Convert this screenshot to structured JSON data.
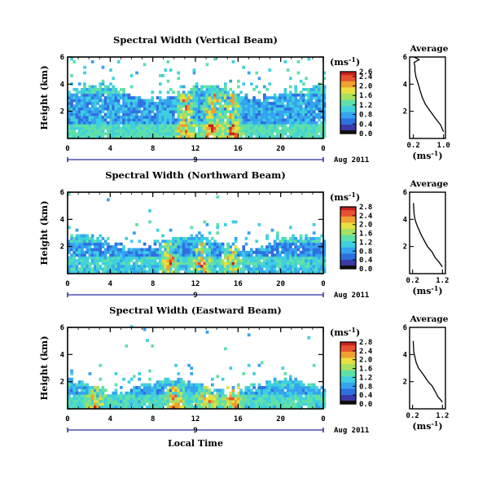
{
  "figure": {
    "xlabel": "Local Time",
    "colorbar_unit": "(ms",
    "colorbar_unit_sup": "-1",
    "avg_title": "Average",
    "avg_unit": "(ms",
    "avg_unit_sup": "-1",
    "date_suffix": "Aug 2011",
    "colors": {
      "colormap": [
        "#2b2b6b",
        "#3a3aa8",
        "#2f6fe0",
        "#35a3f0",
        "#3fd0e0",
        "#60e0a8",
        "#a8e060",
        "#e8e040",
        "#f0a030",
        "#e85030",
        "#c82020"
      ]
    }
  },
  "chart_data": [
    {
      "type": "heatmap",
      "title": "Spectral Width (Vertical Beam)",
      "ylabel": "Height (km)",
      "xlim": [
        0,
        24
      ],
      "ylim": [
        0,
        6
      ],
      "x_ticks": [
        "0",
        "4",
        "8",
        "12",
        "16",
        "20",
        "0"
      ],
      "y_ticks": [
        "2",
        "4",
        "6"
      ],
      "day_label": "9",
      "colorbar": {
        "range": [
          0.0,
          2.6
        ],
        "ticks": [
          "0.0",
          "0.4",
          "0.8",
          "1.2",
          "1.6",
          "2.0",
          "2.4",
          "2.6"
        ]
      },
      "profile": {
        "title": "Average",
        "x_ticks": [
          "0.2",
          "1.0"
        ],
        "xlim": [
          0.1,
          1.05
        ],
        "y_ticks": [
          "2",
          "4",
          "6"
        ],
        "ylim": [
          0,
          6
        ],
        "points": [
          [
            1.0,
            0.5
          ],
          [
            0.92,
            1.0
          ],
          [
            0.78,
            1.5
          ],
          [
            0.65,
            2.0
          ],
          [
            0.52,
            2.5
          ],
          [
            0.44,
            3.0
          ],
          [
            0.38,
            3.5
          ],
          [
            0.33,
            4.0
          ],
          [
            0.27,
            4.5
          ],
          [
            0.24,
            5.0
          ],
          [
            0.24,
            5.3
          ],
          [
            0.22,
            5.6
          ],
          [
            0.35,
            5.8
          ],
          [
            0.22,
            6.0
          ]
        ]
      },
      "field": {
        "top": 3.3,
        "sparse_top": 5.9,
        "low_band": [
          0,
          1.0
        ],
        "hot_x": [
          11,
          13.5,
          15.3
        ],
        "base": 0.5
      }
    },
    {
      "type": "heatmap",
      "title": "Spectral Width (Northward Beam)",
      "ylabel": "Height (km)",
      "xlim": [
        0,
        24
      ],
      "ylim": [
        0,
        6
      ],
      "x_ticks": [
        "0",
        "4",
        "8",
        "12",
        "16",
        "20",
        "0"
      ],
      "y_ticks": [
        "2",
        "4",
        "6"
      ],
      "day_label": "9",
      "colorbar": {
        "range": [
          0.0,
          2.8
        ],
        "ticks": [
          "0.0",
          "0.4",
          "0.8",
          "1.2",
          "1.6",
          "2.0",
          "2.4",
          "2.8"
        ]
      },
      "profile": {
        "title": "Average",
        "x_ticks": [
          "0.2",
          "1.2"
        ],
        "xlim": [
          0.1,
          1.3
        ],
        "y_ticks": [
          "2",
          "4",
          "6"
        ],
        "ylim": [
          0,
          6
        ],
        "points": [
          [
            1.2,
            0.5
          ],
          [
            1.1,
            0.8
          ],
          [
            0.95,
            1.2
          ],
          [
            0.85,
            1.6
          ],
          [
            0.7,
            2.0
          ],
          [
            0.6,
            2.4
          ],
          [
            0.5,
            2.8
          ],
          [
            0.42,
            3.2
          ],
          [
            0.34,
            3.6
          ],
          [
            0.28,
            4.0
          ],
          [
            0.25,
            4.4
          ],
          [
            0.24,
            4.8
          ],
          [
            0.23,
            5.2
          ]
        ]
      },
      "field": {
        "top": 2.2,
        "sparse_top": 3.8,
        "low_band": [
          0.6,
          1.2
        ],
        "hot_x": [
          9.5,
          12.5,
          15.3
        ],
        "base": 0.45
      }
    },
    {
      "type": "heatmap",
      "title": "Spectral Width (Eastward Beam)",
      "ylabel": "Height (km)",
      "xlim": [
        0,
        24
      ],
      "ylim": [
        0,
        6
      ],
      "x_ticks": [
        "0",
        "4",
        "8",
        "12",
        "16",
        "20",
        "0"
      ],
      "y_ticks": [
        "2",
        "4",
        "6"
      ],
      "day_label": "9",
      "colorbar": {
        "range": [
          0.0,
          2.8
        ],
        "ticks": [
          "0.0",
          "0.4",
          "0.8",
          "1.2",
          "1.6",
          "2.0",
          "2.4",
          "2.8"
        ]
      },
      "profile": {
        "title": "Average",
        "x_ticks": [
          "0.2",
          "1.2"
        ],
        "xlim": [
          0.1,
          1.3
        ],
        "y_ticks": [
          "2",
          "4",
          "6"
        ],
        "ylim": [
          0,
          6
        ],
        "points": [
          [
            1.2,
            0.5
          ],
          [
            1.05,
            0.9
          ],
          [
            0.95,
            1.3
          ],
          [
            0.85,
            1.7
          ],
          [
            0.72,
            2.0
          ],
          [
            0.6,
            2.4
          ],
          [
            0.5,
            2.7
          ],
          [
            0.4,
            3.0
          ],
          [
            0.32,
            3.4
          ],
          [
            0.28,
            3.8
          ],
          [
            0.24,
            4.2
          ],
          [
            0.23,
            4.6
          ],
          [
            0.22,
            5.0
          ]
        ]
      },
      "field": {
        "top": 1.6,
        "sparse_top": 3.4,
        "low_band": [
          0.1,
          0.8
        ],
        "hot_x": [
          2.5,
          10,
          13,
          15.3
        ],
        "base": 0.6
      }
    }
  ]
}
